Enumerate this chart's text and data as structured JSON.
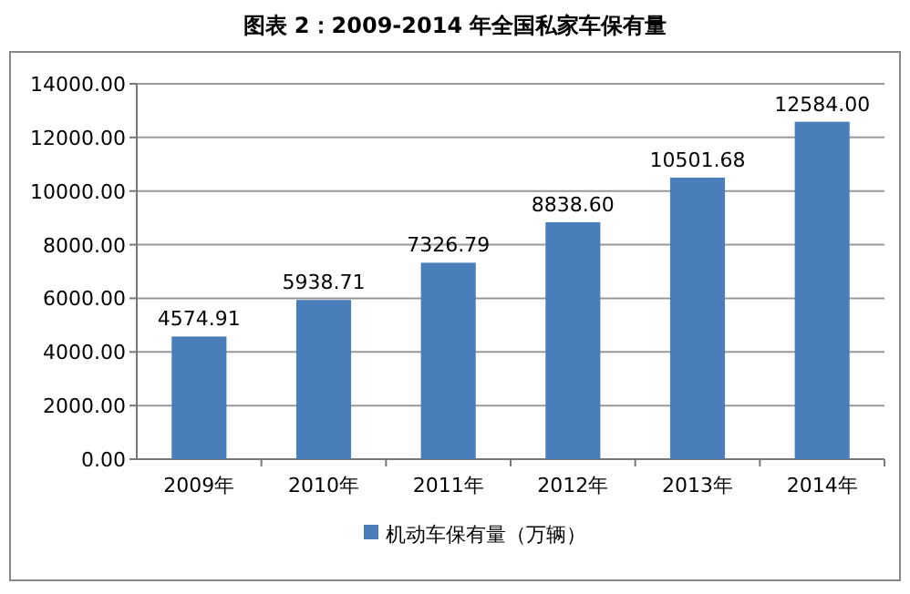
{
  "chart_data": {
    "type": "bar",
    "title": "图表 2：2009-2014 年全国私家车保有量",
    "categories": [
      "2009年",
      "2010年",
      "2011年",
      "2012年",
      "2013年",
      "2014年"
    ],
    "series": [
      {
        "name": "机动车保有量（万辆）",
        "color": "#4a7ebb",
        "values": [
          4574.91,
          5938.71,
          7326.79,
          8838.6,
          10501.68,
          12584.0
        ],
        "value_labels": [
          "4574.91",
          "5938.71",
          "7326.79",
          "8838.60",
          "10501.68",
          "12584.00"
        ]
      }
    ],
    "ylim": [
      0,
      14000
    ],
    "yticks": [
      {
        "value": 0,
        "label": "0.00"
      },
      {
        "value": 2000,
        "label": "2000.00"
      },
      {
        "value": 4000,
        "label": "4000.00"
      },
      {
        "value": 6000,
        "label": "6000.00"
      },
      {
        "value": 8000,
        "label": "8000.00"
      },
      {
        "value": 10000,
        "label": "10000.00"
      },
      {
        "value": 12000,
        "label": "12000.00"
      },
      {
        "value": 14000,
        "label": "14000.00"
      }
    ],
    "grid": "y",
    "legend": "bottom"
  }
}
